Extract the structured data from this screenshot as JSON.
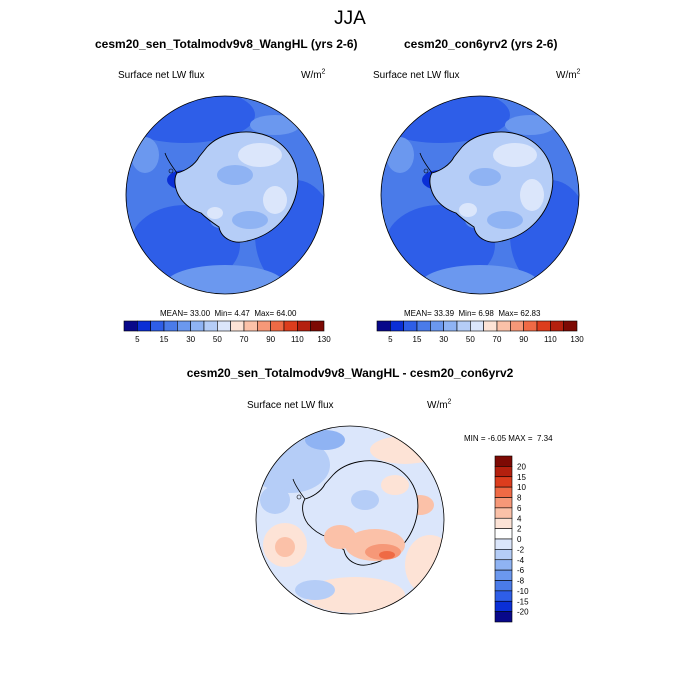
{
  "season": "JJA",
  "panels": [
    {
      "title": "cesm20_sen_Totalmodv9v8_WangHL (yrs 2-6)",
      "variable": "Surface net LW flux",
      "units_base": "W/m",
      "units_exp": "2",
      "stats": {
        "mean_label": "MEAN=",
        "mean": "33.00",
        "min_label": "Min=",
        "min": "4.47",
        "max_label": "Max=",
        "max": "64.00"
      }
    },
    {
      "title": "cesm20_con6yrv2 (yrs 2-6)",
      "variable": "Surface net LW flux",
      "units_base": "W/m",
      "units_exp": "2",
      "stats": {
        "mean_label": "MEAN=",
        "mean": "33.39",
        "min_label": "Min=",
        "min": "6.98",
        "max_label": "Max=",
        "max": "62.83"
      }
    }
  ],
  "colorbar_top": {
    "colors": [
      "#08088a",
      "#0a2fd6",
      "#2e5ee8",
      "#4a7be9",
      "#6b98ef",
      "#8fb3f3",
      "#b5cdf7",
      "#dbe6fb",
      "#fde3d6",
      "#fbc1a8",
      "#f69878",
      "#ef6a45",
      "#dc3d1d",
      "#b4200e",
      "#7d0a04"
    ],
    "labels": [
      "5",
      "15",
      "30",
      "50",
      "70",
      "90",
      "110",
      "130"
    ]
  },
  "diff_panel": {
    "title": "cesm20_sen_Totalmodv9v8_WangHL - cesm20_con6yrv2",
    "variable": "Surface net LW flux",
    "units_base": "W/m",
    "units_exp": "2",
    "min_label": "MIN =",
    "min": "-6.05",
    "max_label": "MAX =",
    "max": "7.34"
  },
  "colorbar_diff": {
    "colors": [
      "#7d0a04",
      "#b4200e",
      "#dc3d1d",
      "#ef6a45",
      "#f69878",
      "#fbc1a8",
      "#fde3d6",
      "#ffffff",
      "#dbe6fb",
      "#b5cdf7",
      "#8fb3f3",
      "#6b98ef",
      "#4a7be9",
      "#2e5ee8",
      "#0a2fd6",
      "#08088a"
    ],
    "labels": [
      "20",
      "15",
      "10",
      "8",
      "6",
      "4",
      "2",
      "0",
      "-2",
      "-4",
      "-6",
      "-8",
      "-10",
      "-15",
      "-20"
    ]
  }
}
